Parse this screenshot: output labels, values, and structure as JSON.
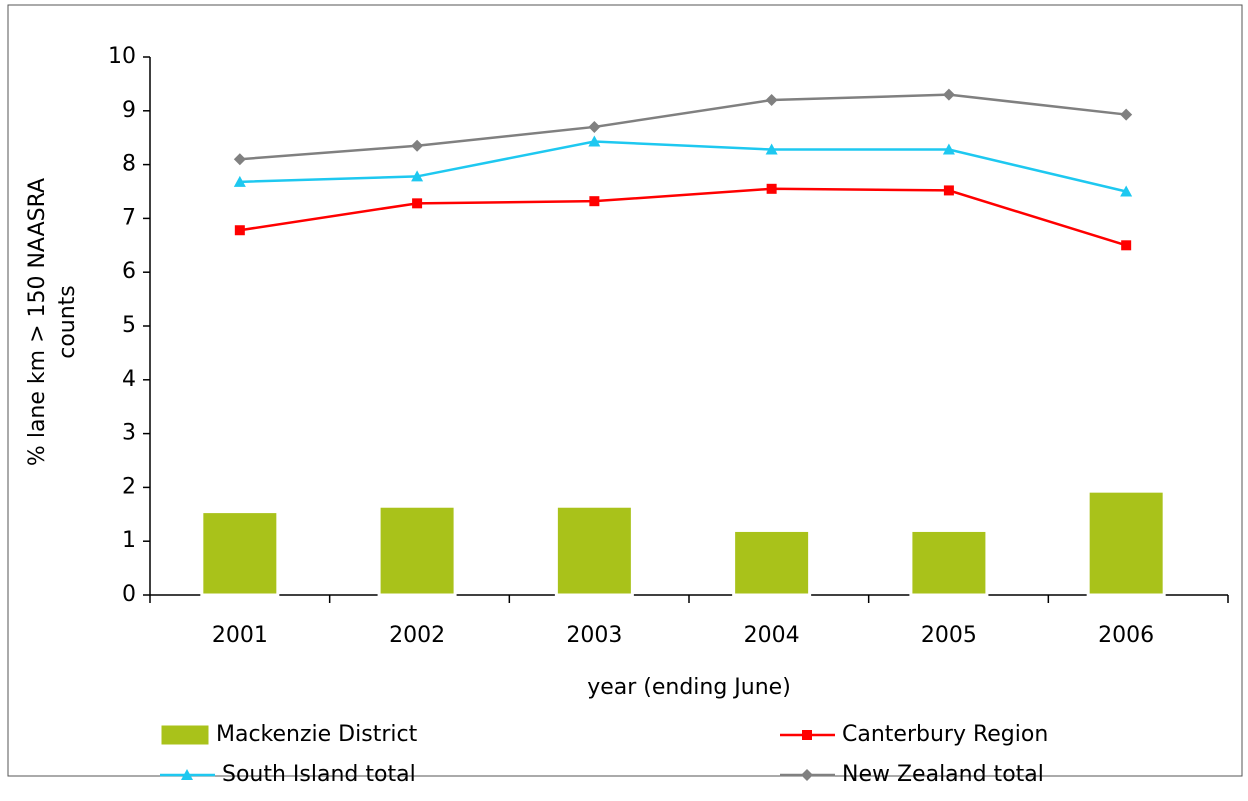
{
  "chart_data": {
    "type": "combo",
    "x_label": "year (ending June)",
    "y_label": "% lane km > 150 NAASRA counts",
    "categories": [
      "2001",
      "2002",
      "2003",
      "2004",
      "2005",
      "2006"
    ],
    "ylim": [
      0,
      10
    ],
    "yticks": [
      0,
      1,
      2,
      3,
      4,
      5,
      6,
      7,
      8,
      9,
      10
    ],
    "series": [
      {
        "name": "Mackenzie District",
        "type": "bar",
        "color": "#a9c21a",
        "values": [
          1.55,
          1.65,
          1.65,
          1.2,
          1.2,
          1.93
        ]
      },
      {
        "name": "Canterbury Region",
        "type": "line",
        "marker": "square",
        "color": "#ff0000",
        "values": [
          6.78,
          7.28,
          7.32,
          7.55,
          7.52,
          6.5
        ]
      },
      {
        "name": "South Island total",
        "type": "line",
        "marker": "triangle",
        "color": "#1ec8f0",
        "values": [
          7.68,
          7.78,
          8.43,
          8.28,
          8.28,
          7.5
        ]
      },
      {
        "name": "New Zealand total",
        "type": "line",
        "marker": "diamond",
        "color": "#808080",
        "values": [
          8.1,
          8.35,
          8.7,
          9.2,
          9.3,
          8.93
        ]
      }
    ]
  }
}
